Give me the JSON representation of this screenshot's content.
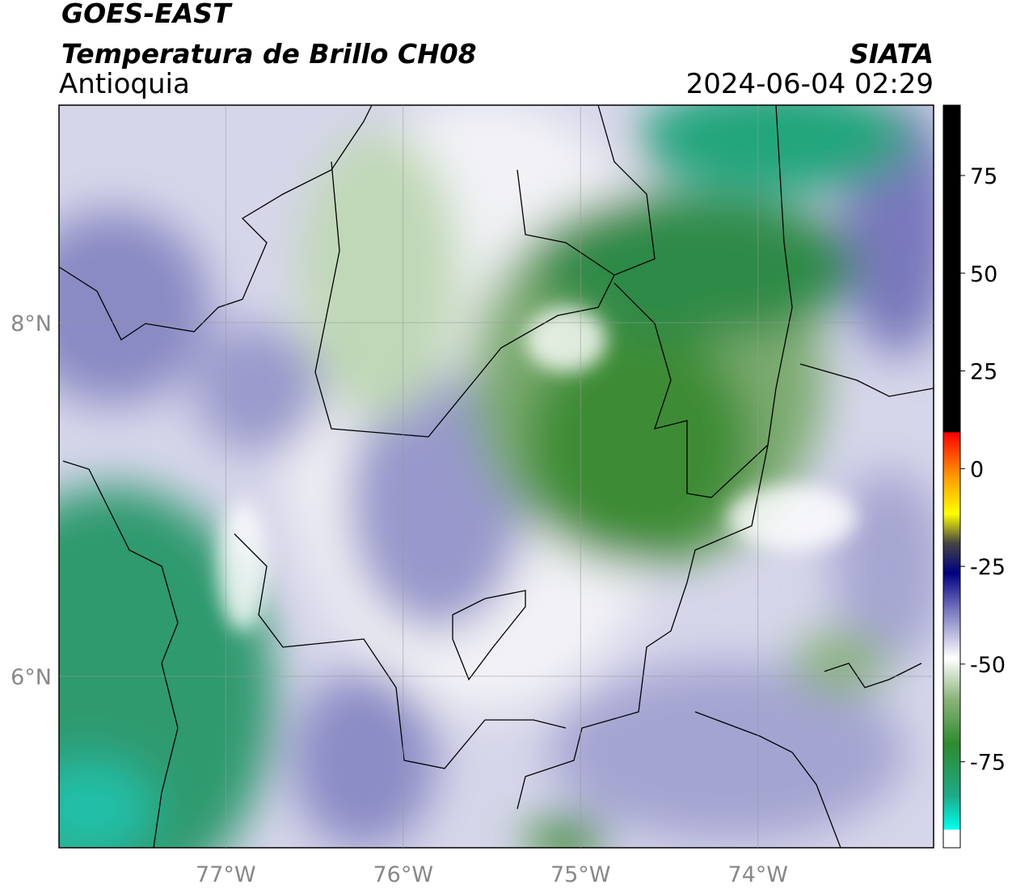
{
  "header": {
    "title": "GOES-EAST",
    "subtitle": "Temperatura de Brillo CH08",
    "region": "Antioquia",
    "source": "SIATA",
    "datetime": "2024-06-04 02:29"
  },
  "map": {
    "xlim": [
      -77.94,
      -73.01
    ],
    "ylim": [
      5.03,
      9.23
    ],
    "xticks": [
      {
        "value": -77,
        "label": "77°W"
      },
      {
        "value": -76,
        "label": "76°W"
      },
      {
        "value": -75,
        "label": "75°W"
      },
      {
        "value": -74,
        "label": "74°W"
      }
    ],
    "yticks": [
      {
        "value": 8,
        "label": "8°N"
      },
      {
        "value": 6,
        "label": "6°N"
      }
    ],
    "grid": true
  },
  "colorbar": {
    "lim": [
      -97,
      93
    ],
    "ticks": [
      75,
      50,
      25,
      0,
      -25,
      -50,
      -75
    ]
  }
}
